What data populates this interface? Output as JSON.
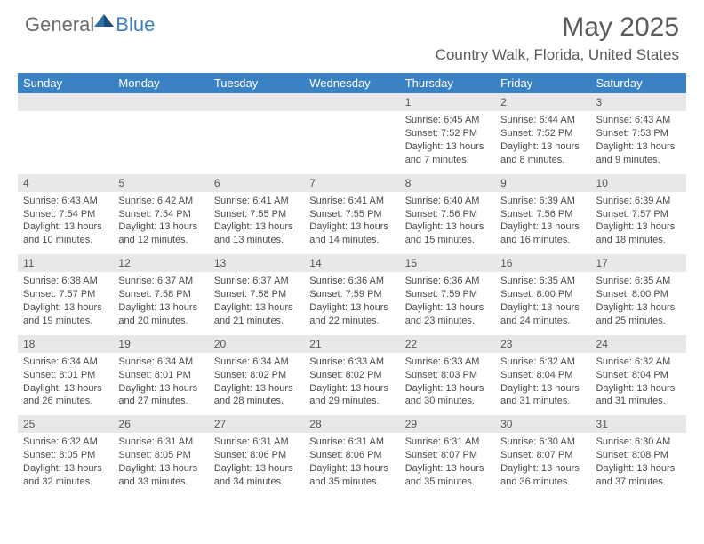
{
  "brand": {
    "general": "General",
    "blue": "Blue"
  },
  "title": "May 2025",
  "location": "Country Walk, Florida, United States",
  "colors": {
    "header_bg": "#3b82c4",
    "header_text": "#ffffff",
    "daynum_bg": "#e8e8e8",
    "text": "#4a4a4a",
    "logo_gray": "#6b6b6b",
    "logo_blue": "#3b7fc4",
    "body_bg": "#ffffff"
  },
  "weekdays": [
    "Sunday",
    "Monday",
    "Tuesday",
    "Wednesday",
    "Thursday",
    "Friday",
    "Saturday"
  ],
  "weeks": [
    [
      null,
      null,
      null,
      null,
      {
        "n": "1",
        "sunrise": "6:45 AM",
        "sunset": "7:52 PM",
        "daylight": "13 hours and 7 minutes."
      },
      {
        "n": "2",
        "sunrise": "6:44 AM",
        "sunset": "7:52 PM",
        "daylight": "13 hours and 8 minutes."
      },
      {
        "n": "3",
        "sunrise": "6:43 AM",
        "sunset": "7:53 PM",
        "daylight": "13 hours and 9 minutes."
      }
    ],
    [
      {
        "n": "4",
        "sunrise": "6:43 AM",
        "sunset": "7:54 PM",
        "daylight": "13 hours and 10 minutes."
      },
      {
        "n": "5",
        "sunrise": "6:42 AM",
        "sunset": "7:54 PM",
        "daylight": "13 hours and 12 minutes."
      },
      {
        "n": "6",
        "sunrise": "6:41 AM",
        "sunset": "7:55 PM",
        "daylight": "13 hours and 13 minutes."
      },
      {
        "n": "7",
        "sunrise": "6:41 AM",
        "sunset": "7:55 PM",
        "daylight": "13 hours and 14 minutes."
      },
      {
        "n": "8",
        "sunrise": "6:40 AM",
        "sunset": "7:56 PM",
        "daylight": "13 hours and 15 minutes."
      },
      {
        "n": "9",
        "sunrise": "6:39 AM",
        "sunset": "7:56 PM",
        "daylight": "13 hours and 16 minutes."
      },
      {
        "n": "10",
        "sunrise": "6:39 AM",
        "sunset": "7:57 PM",
        "daylight": "13 hours and 18 minutes."
      }
    ],
    [
      {
        "n": "11",
        "sunrise": "6:38 AM",
        "sunset": "7:57 PM",
        "daylight": "13 hours and 19 minutes."
      },
      {
        "n": "12",
        "sunrise": "6:37 AM",
        "sunset": "7:58 PM",
        "daylight": "13 hours and 20 minutes."
      },
      {
        "n": "13",
        "sunrise": "6:37 AM",
        "sunset": "7:58 PM",
        "daylight": "13 hours and 21 minutes."
      },
      {
        "n": "14",
        "sunrise": "6:36 AM",
        "sunset": "7:59 PM",
        "daylight": "13 hours and 22 minutes."
      },
      {
        "n": "15",
        "sunrise": "6:36 AM",
        "sunset": "7:59 PM",
        "daylight": "13 hours and 23 minutes."
      },
      {
        "n": "16",
        "sunrise": "6:35 AM",
        "sunset": "8:00 PM",
        "daylight": "13 hours and 24 minutes."
      },
      {
        "n": "17",
        "sunrise": "6:35 AM",
        "sunset": "8:00 PM",
        "daylight": "13 hours and 25 minutes."
      }
    ],
    [
      {
        "n": "18",
        "sunrise": "6:34 AM",
        "sunset": "8:01 PM",
        "daylight": "13 hours and 26 minutes."
      },
      {
        "n": "19",
        "sunrise": "6:34 AM",
        "sunset": "8:01 PM",
        "daylight": "13 hours and 27 minutes."
      },
      {
        "n": "20",
        "sunrise": "6:34 AM",
        "sunset": "8:02 PM",
        "daylight": "13 hours and 28 minutes."
      },
      {
        "n": "21",
        "sunrise": "6:33 AM",
        "sunset": "8:02 PM",
        "daylight": "13 hours and 29 minutes."
      },
      {
        "n": "22",
        "sunrise": "6:33 AM",
        "sunset": "8:03 PM",
        "daylight": "13 hours and 30 minutes."
      },
      {
        "n": "23",
        "sunrise": "6:32 AM",
        "sunset": "8:04 PM",
        "daylight": "13 hours and 31 minutes."
      },
      {
        "n": "24",
        "sunrise": "6:32 AM",
        "sunset": "8:04 PM",
        "daylight": "13 hours and 31 minutes."
      }
    ],
    [
      {
        "n": "25",
        "sunrise": "6:32 AM",
        "sunset": "8:05 PM",
        "daylight": "13 hours and 32 minutes."
      },
      {
        "n": "26",
        "sunrise": "6:31 AM",
        "sunset": "8:05 PM",
        "daylight": "13 hours and 33 minutes."
      },
      {
        "n": "27",
        "sunrise": "6:31 AM",
        "sunset": "8:06 PM",
        "daylight": "13 hours and 34 minutes."
      },
      {
        "n": "28",
        "sunrise": "6:31 AM",
        "sunset": "8:06 PM",
        "daylight": "13 hours and 35 minutes."
      },
      {
        "n": "29",
        "sunrise": "6:31 AM",
        "sunset": "8:07 PM",
        "daylight": "13 hours and 35 minutes."
      },
      {
        "n": "30",
        "sunrise": "6:30 AM",
        "sunset": "8:07 PM",
        "daylight": "13 hours and 36 minutes."
      },
      {
        "n": "31",
        "sunrise": "6:30 AM",
        "sunset": "8:08 PM",
        "daylight": "13 hours and 37 minutes."
      }
    ]
  ],
  "labels": {
    "sunrise": "Sunrise: ",
    "sunset": "Sunset: ",
    "daylight": "Daylight: "
  }
}
